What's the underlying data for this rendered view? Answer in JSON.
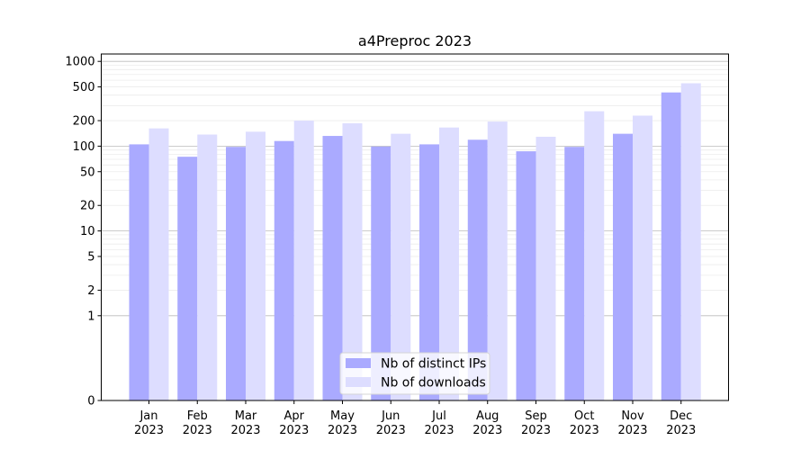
{
  "chart_data": {
    "type": "bar",
    "title": "a4Preproc 2023",
    "xlabel": "",
    "ylabel": "",
    "yscale": "symlog",
    "ylim": [
      0,
      1000
    ],
    "ytick_labels": [
      "0",
      "1",
      "2",
      "5",
      "10",
      "20",
      "50",
      "100",
      "200",
      "500",
      "1000"
    ],
    "ytick_values": [
      0,
      1,
      2,
      5,
      10,
      20,
      50,
      100,
      200,
      500,
      1000
    ],
    "categories": [
      "Jan\n2023",
      "Feb\n2023",
      "Mar\n2023",
      "Apr\n2023",
      "May\n2023",
      "Jun\n2023",
      "Jul\n2023",
      "Aug\n2023",
      "Sep\n2023",
      "Oct\n2023",
      "Nov\n2023",
      "Dec\n2023"
    ],
    "series": [
      {
        "name": "Nb of distinct IPs",
        "color": "#aaaaff",
        "values": [
          105,
          75,
          98,
          115,
          132,
          99,
          105,
          119,
          87,
          98,
          140,
          430
        ]
      },
      {
        "name": "Nb of downloads",
        "color": "#ddddff",
        "values": [
          162,
          137,
          148,
          200,
          186,
          140,
          166,
          195,
          129,
          258,
          229,
          552
        ]
      }
    ],
    "legend_position": "bottom-center",
    "grid": true
  }
}
